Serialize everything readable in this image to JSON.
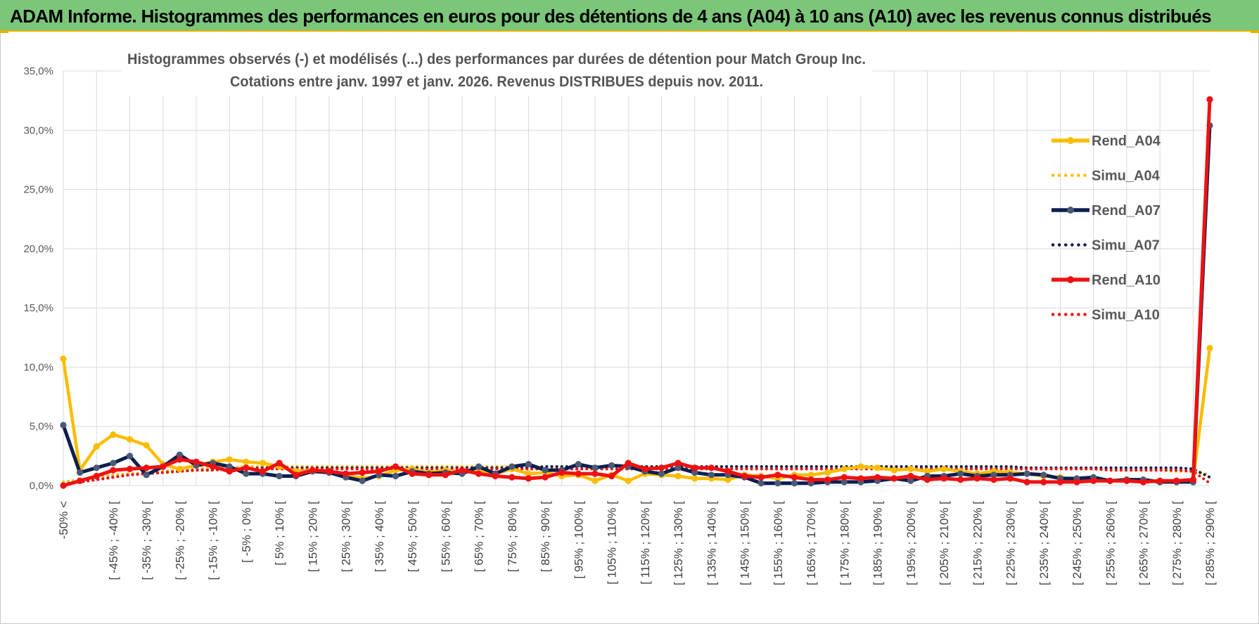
{
  "header": {
    "banner_title": "ADAM Informe. Histogrammes des performances en euros pour des détentions de 4 ans (A04) à 10 ans (A10) avec les revenus connus distribués"
  },
  "colors": {
    "banner_bg": "#7cc67a",
    "accent": "#e3b100",
    "A04": "#fbbc05",
    "A07": "#0b1f4f",
    "A07_marker": "#4a5a78",
    "A10": "#ee1111",
    "grid": "#d9d9d9"
  },
  "chart_data": {
    "type": "line",
    "title": "Histogrammes observés (-) et modélisés (...) des performances par durées de détention pour Match Group Inc.",
    "subtitle": "Cotations entre janv. 1997 et janv. 2026. Revenus DISTRIBUES depuis nov. 2011.",
    "xlabel": "",
    "ylabel": "",
    "ylim": [
      0,
      35
    ],
    "yticks": [
      "0,0%",
      "5,0%",
      "10,0%",
      "15,0%",
      "20,0%",
      "25,0%",
      "30,0%",
      "35,0%"
    ],
    "grid": true,
    "legend_position": "right",
    "category_labels": [
      "-50% <",
      "[ -45% ; -40% [",
      "[ -35% ; -30% [",
      "[ -25% ; -20% [",
      "[ -15% ; -10% [",
      "[ -5% ; 0% [",
      "[ 5% ; 10% [",
      "[ 15% ; 20% [",
      "[ 25% ; 30% [",
      "[ 35% ; 40% [",
      "[ 45% ; 50% [",
      "[ 55% ; 60% [",
      "[ 65% ; 70% [",
      "[ 75% ; 80% [",
      "[ 85% ; 90% [",
      "[ 95% ; 100% [",
      "[ 105% ; 110% [",
      "[ 115% ; 120% [",
      "[ 125% ; 130% [",
      "[ 135% ; 140% [",
      "[ 145% ; 150% [",
      "[ 155% ; 160% [",
      "[ 165% ; 170% [",
      "[ 175% ; 180% [",
      "[ 185% ; 190% [",
      "[ 195% ; 200% [",
      "[ 205% ; 210% [",
      "[ 215% ; 220% [",
      "[ 225% ; 230% [",
      "[ 235% ; 240% [",
      "[ 245% ; 250% [",
      "[ 255% ; 260% [",
      "[ 265% ; 270% [",
      "[ 275% ; 280% [",
      "[ 285% ; 290% ["
    ],
    "n_points": 70,
    "series": [
      {
        "name": "Rend_A04",
        "style": "solid",
        "color": "#fbbc05",
        "values": [
          10.7,
          1.3,
          3.3,
          4.3,
          3.9,
          3.4,
          1.8,
          1.4,
          1.7,
          2.0,
          2.2,
          2.0,
          1.9,
          1.6,
          1.2,
          1.3,
          1.2,
          0.9,
          0.6,
          0.8,
          1.3,
          1.4,
          1.1,
          1.3,
          1.1,
          1.2,
          1.0,
          1.4,
          1.0,
          1.1,
          0.8,
          0.9,
          0.4,
          0.9,
          0.4,
          1.0,
          0.9,
          0.8,
          0.6,
          0.6,
          0.5,
          0.9,
          0.8,
          0.6,
          0.9,
          0.9,
          1.1,
          1.4,
          1.6,
          1.5,
          1.3,
          1.4,
          1.2,
          1.4,
          1.2,
          1.0,
          1.2,
          1.1,
          1.0,
          0.8,
          0.7,
          0.5,
          0.5,
          0.4,
          0.5,
          0.4,
          0.3,
          0.4,
          0.4,
          11.6
        ]
      },
      {
        "name": "Simu_A04",
        "style": "dotted",
        "color": "#fbbc05",
        "values": [
          0.3,
          0.5,
          0.7,
          0.9,
          1.0,
          1.1,
          1.2,
          1.3,
          1.4,
          1.5,
          1.5,
          1.6,
          1.6,
          1.6,
          1.6,
          1.6,
          1.6,
          1.6,
          1.6,
          1.6,
          1.6,
          1.6,
          1.6,
          1.6,
          1.6,
          1.6,
          1.6,
          1.6,
          1.6,
          1.6,
          1.6,
          1.6,
          1.6,
          1.6,
          1.6,
          1.6,
          1.6,
          1.6,
          1.6,
          1.6,
          1.6,
          1.6,
          1.6,
          1.6,
          1.6,
          1.6,
          1.6,
          1.6,
          1.6,
          1.6,
          1.6,
          1.6,
          1.5,
          1.5,
          1.5,
          1.5,
          1.5,
          1.5,
          1.5,
          1.4,
          1.4,
          1.4,
          1.4,
          1.3,
          1.3,
          1.3,
          1.3,
          1.2,
          1.2,
          0.9
        ]
      },
      {
        "name": "Rend_A07",
        "style": "solid",
        "color": "#0b1f4f",
        "values": [
          5.1,
          1.1,
          1.5,
          1.9,
          2.5,
          0.9,
          1.6,
          2.6,
          1.7,
          1.9,
          1.6,
          1.0,
          1.0,
          0.8,
          0.8,
          1.2,
          1.1,
          0.7,
          0.4,
          0.9,
          0.8,
          1.2,
          1.0,
          1.1,
          1.0,
          1.6,
          1.0,
          1.6,
          1.8,
          1.3,
          1.3,
          1.8,
          1.5,
          1.7,
          1.6,
          1.2,
          1.0,
          1.5,
          1.1,
          0.9,
          0.9,
          0.7,
          0.2,
          0.2,
          0.2,
          0.2,
          0.3,
          0.3,
          0.3,
          0.4,
          0.6,
          0.4,
          0.8,
          0.8,
          1.0,
          0.8,
          0.9,
          0.9,
          1.0,
          0.9,
          0.6,
          0.6,
          0.7,
          0.4,
          0.5,
          0.5,
          0.3,
          0.3,
          0.3,
          30.4
        ]
      },
      {
        "name": "Simu_A07",
        "style": "dotted",
        "color": "#0b1f4f",
        "values": [
          0.1,
          0.3,
          0.5,
          0.7,
          0.9,
          1.0,
          1.1,
          1.2,
          1.3,
          1.3,
          1.4,
          1.4,
          1.5,
          1.5,
          1.5,
          1.5,
          1.5,
          1.5,
          1.5,
          1.5,
          1.5,
          1.5,
          1.5,
          1.5,
          1.5,
          1.5,
          1.5,
          1.5,
          1.5,
          1.6,
          1.6,
          1.6,
          1.6,
          1.6,
          1.6,
          1.6,
          1.6,
          1.6,
          1.6,
          1.6,
          1.6,
          1.6,
          1.6,
          1.6,
          1.6,
          1.6,
          1.6,
          1.6,
          1.6,
          1.6,
          1.6,
          1.6,
          1.6,
          1.6,
          1.6,
          1.6,
          1.6,
          1.6,
          1.5,
          1.5,
          1.5,
          1.5,
          1.5,
          1.5,
          1.5,
          1.5,
          1.5,
          1.5,
          1.4,
          0.7
        ]
      },
      {
        "name": "Rend_A10",
        "style": "solid",
        "color": "#ee1111",
        "values": [
          0.0,
          0.4,
          0.8,
          1.3,
          1.4,
          1.5,
          1.6,
          2.2,
          2.0,
          1.6,
          1.2,
          1.5,
          1.2,
          1.9,
          0.9,
          1.3,
          1.2,
          1.0,
          1.1,
          1.2,
          1.6,
          1.0,
          0.9,
          0.9,
          1.3,
          1.0,
          0.8,
          0.7,
          0.6,
          0.7,
          1.1,
          1.0,
          1.0,
          0.8,
          1.9,
          1.4,
          1.5,
          1.9,
          1.5,
          1.5,
          1.2,
          0.8,
          0.7,
          0.9,
          0.7,
          0.5,
          0.5,
          0.7,
          0.6,
          0.7,
          0.6,
          0.8,
          0.5,
          0.6,
          0.5,
          0.6,
          0.5,
          0.6,
          0.3,
          0.3,
          0.3,
          0.3,
          0.4,
          0.4,
          0.4,
          0.3,
          0.4,
          0.4,
          0.5,
          32.6
        ]
      },
      {
        "name": "Simu_A10",
        "style": "dotted",
        "color": "#ee1111",
        "values": [
          0.1,
          0.3,
          0.5,
          0.7,
          0.9,
          1.0,
          1.1,
          1.2,
          1.3,
          1.3,
          1.4,
          1.4,
          1.4,
          1.4,
          1.4,
          1.4,
          1.4,
          1.4,
          1.4,
          1.4,
          1.4,
          1.4,
          1.4,
          1.4,
          1.4,
          1.4,
          1.4,
          1.4,
          1.4,
          1.4,
          1.4,
          1.4,
          1.4,
          1.4,
          1.4,
          1.4,
          1.4,
          1.4,
          1.4,
          1.4,
          1.4,
          1.4,
          1.4,
          1.4,
          1.4,
          1.4,
          1.4,
          1.4,
          1.4,
          1.4,
          1.4,
          1.4,
          1.4,
          1.4,
          1.4,
          1.4,
          1.4,
          1.4,
          1.4,
          1.4,
          1.4,
          1.4,
          1.4,
          1.3,
          1.3,
          1.3,
          1.3,
          1.3,
          1.2,
          0.2
        ]
      }
    ]
  }
}
